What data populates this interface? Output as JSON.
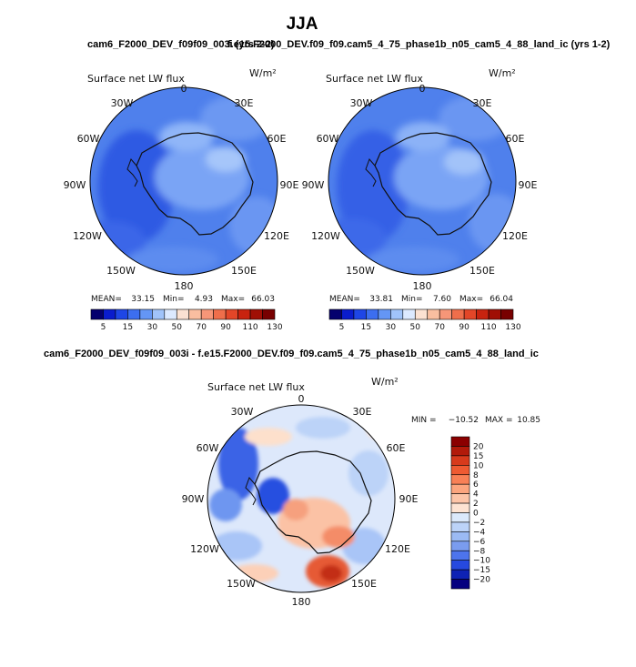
{
  "figure": {
    "season": "JJA",
    "top_title_left": "cam6_F2000_DEV_f09f09_003i (yrs 2-2)",
    "top_title_right": "f.e15.F2000_DEV.f09_f09.cam5_4_75_phase1b_n05_cam5_4_88_land_ic (yrs 1-2)",
    "diff_title": "cam6_F2000_DEV_f09f09_003i - f.e15.F2000_DEV.f09_f09.cam5_4_75_phase1b_n05_cam5_4_88_land_ic"
  },
  "panels": {
    "left": {
      "variable": "Surface net LW flux",
      "units": "W/m²",
      "mean_label": "MEAN=",
      "mean": "33.15",
      "min_label": "Min=",
      "min": "4.93",
      "max_label": "Max=",
      "max": "66.03"
    },
    "right": {
      "variable": "Surface net LW flux",
      "units": "W/m²",
      "mean_label": "MEAN=",
      "mean": "33.81",
      "min_label": "Min=",
      "min": "7.60",
      "max_label": "Max=",
      "max": "66.04"
    },
    "diff": {
      "variable": "Surface net LW flux",
      "units": "W/m²",
      "min_label": "MIN =",
      "min": "−10.52",
      "max_label": "MAX =",
      "max": "10.85"
    }
  },
  "lon_labels": [
    "0",
    "30E",
    "60E",
    "90E",
    "120E",
    "150E",
    "180",
    "150W",
    "120W",
    "90W",
    "60W",
    "30W"
  ],
  "chart_data": [
    {
      "type": "heatmap",
      "projection": "south-polar-stereographic",
      "title": "cam6_F2000_DEV_f09f09_003i (yrs 2-2)",
      "variable": "Surface net LW flux",
      "units": "W/m^2",
      "stats": {
        "mean": 33.15,
        "min": 4.93,
        "max": 66.03
      },
      "colorbar_levels": [
        5,
        15,
        30,
        50,
        70,
        90,
        110,
        130
      ],
      "colorbar_colors": [
        "#05006e",
        "#0a1ccd",
        "#1e46e6",
        "#3c6ef0",
        "#6496f5",
        "#a0c3fa",
        "#dce9ff",
        "#fbe1d2",
        "#f9bea0",
        "#f69678",
        "#ef6e4b",
        "#e34628",
        "#c8230f",
        "#a00f05",
        "#780000"
      ],
      "dominant_ranges": [
        "30-50",
        "50-70"
      ]
    },
    {
      "type": "heatmap",
      "projection": "south-polar-stereographic",
      "title": "f.e15.F2000_DEV.f09_f09.cam5_4_75_phase1b_n05_cam5_4_88_land_ic (yrs 1-2)",
      "variable": "Surface net LW flux",
      "units": "W/m^2",
      "stats": {
        "mean": 33.81,
        "min": 7.6,
        "max": 66.04
      },
      "colorbar_levels": [
        5,
        15,
        30,
        50,
        70,
        90,
        110,
        130
      ],
      "colorbar_colors": [
        "#05006e",
        "#0a1ccd",
        "#1e46e6",
        "#3c6ef0",
        "#6496f5",
        "#a0c3fa",
        "#dce9ff",
        "#fbe1d2",
        "#f9bea0",
        "#f69678",
        "#ef6e4b",
        "#e34628",
        "#c8230f",
        "#a00f05",
        "#780000"
      ],
      "dominant_ranges": [
        "30-50",
        "50-70"
      ]
    },
    {
      "type": "heatmap",
      "projection": "south-polar-stereographic",
      "title": "cam6_F2000_DEV_f09f09_003i - f.e15.F2000_DEV.f09_f09.cam5_4_75_phase1b_n05_cam5_4_88_land_ic",
      "variable": "Surface net LW flux",
      "units": "W/m^2",
      "stats": {
        "min": -10.52,
        "max": 10.85
      },
      "colorbar_levels": [
        20,
        15,
        10,
        8,
        6,
        4,
        2,
        0,
        -2,
        -4,
        -6,
        -8,
        -10,
        -15,
        -20
      ],
      "colorbar_colors": [
        "#8b0000",
        "#b21a0a",
        "#d73a1c",
        "#ee5a32",
        "#f88056",
        "#fca57e",
        "#fdc5a8",
        "#fde3d2",
        "#dbe9fb",
        "#bcd3f8",
        "#9bbaf4",
        "#7a9cef",
        "#4d74ec",
        "#2649df",
        "#0e22b4",
        "#050080"
      ],
      "notable_regions": [
        "negative near 60W-90W",
        "positive near 150E-180"
      ]
    }
  ]
}
